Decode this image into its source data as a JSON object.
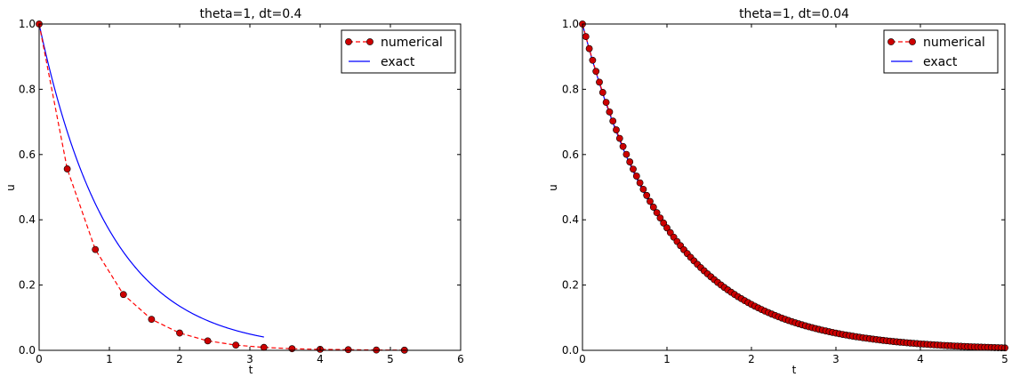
{
  "chart_data": [
    {
      "type": "line",
      "title": "theta=1, dt=0.4",
      "xlabel": "t",
      "ylabel": "u",
      "xlim": [
        0,
        6
      ],
      "ylim": [
        0,
        1.0
      ],
      "xticks": [
        0,
        1,
        2,
        3,
        4,
        5,
        6
      ],
      "yticks": [
        0.0,
        0.2,
        0.4,
        0.6,
        0.8,
        1.0
      ],
      "grid": false,
      "legend_position": "top-right",
      "series": [
        {
          "name": "numerical",
          "style": "dashed-with-markers",
          "color": "#ff0000",
          "marker_color": "#cc0000",
          "x": [
            0,
            0.4,
            0.8,
            1.2,
            1.6,
            2.0,
            2.4,
            2.8,
            3.2,
            3.6,
            4.0,
            4.4,
            4.8,
            5.2
          ],
          "values": [
            1.0,
            0.556,
            0.309,
            0.171,
            0.095,
            0.053,
            0.029,
            0.016,
            0.009,
            0.005,
            0.003,
            0.002,
            0.001,
            0.0005
          ]
        },
        {
          "name": "exact",
          "style": "solid",
          "color": "#0000ff",
          "function": "exp(-t)",
          "x_range": [
            0,
            3.2
          ]
        }
      ]
    },
    {
      "type": "line",
      "title": "theta=1, dt=0.04",
      "xlabel": "t",
      "ylabel": "u",
      "xlim": [
        0,
        5
      ],
      "ylim": [
        0,
        1.0
      ],
      "xticks": [
        0,
        1,
        2,
        3,
        4,
        5
      ],
      "yticks": [
        0.0,
        0.2,
        0.4,
        0.6,
        0.8,
        1.0
      ],
      "grid": false,
      "legend_position": "top-right",
      "series": [
        {
          "name": "numerical",
          "style": "dashed-with-markers",
          "color": "#ff0000",
          "marker_color": "#cc0000",
          "formula": "u[n] = (1/(1+dt))^n",
          "dt": 0.04,
          "x_range": [
            0,
            5.0
          ]
        },
        {
          "name": "exact",
          "style": "solid",
          "color": "#0000ff",
          "function": "exp(-t)",
          "x_range": [
            0,
            5
          ]
        }
      ]
    }
  ]
}
